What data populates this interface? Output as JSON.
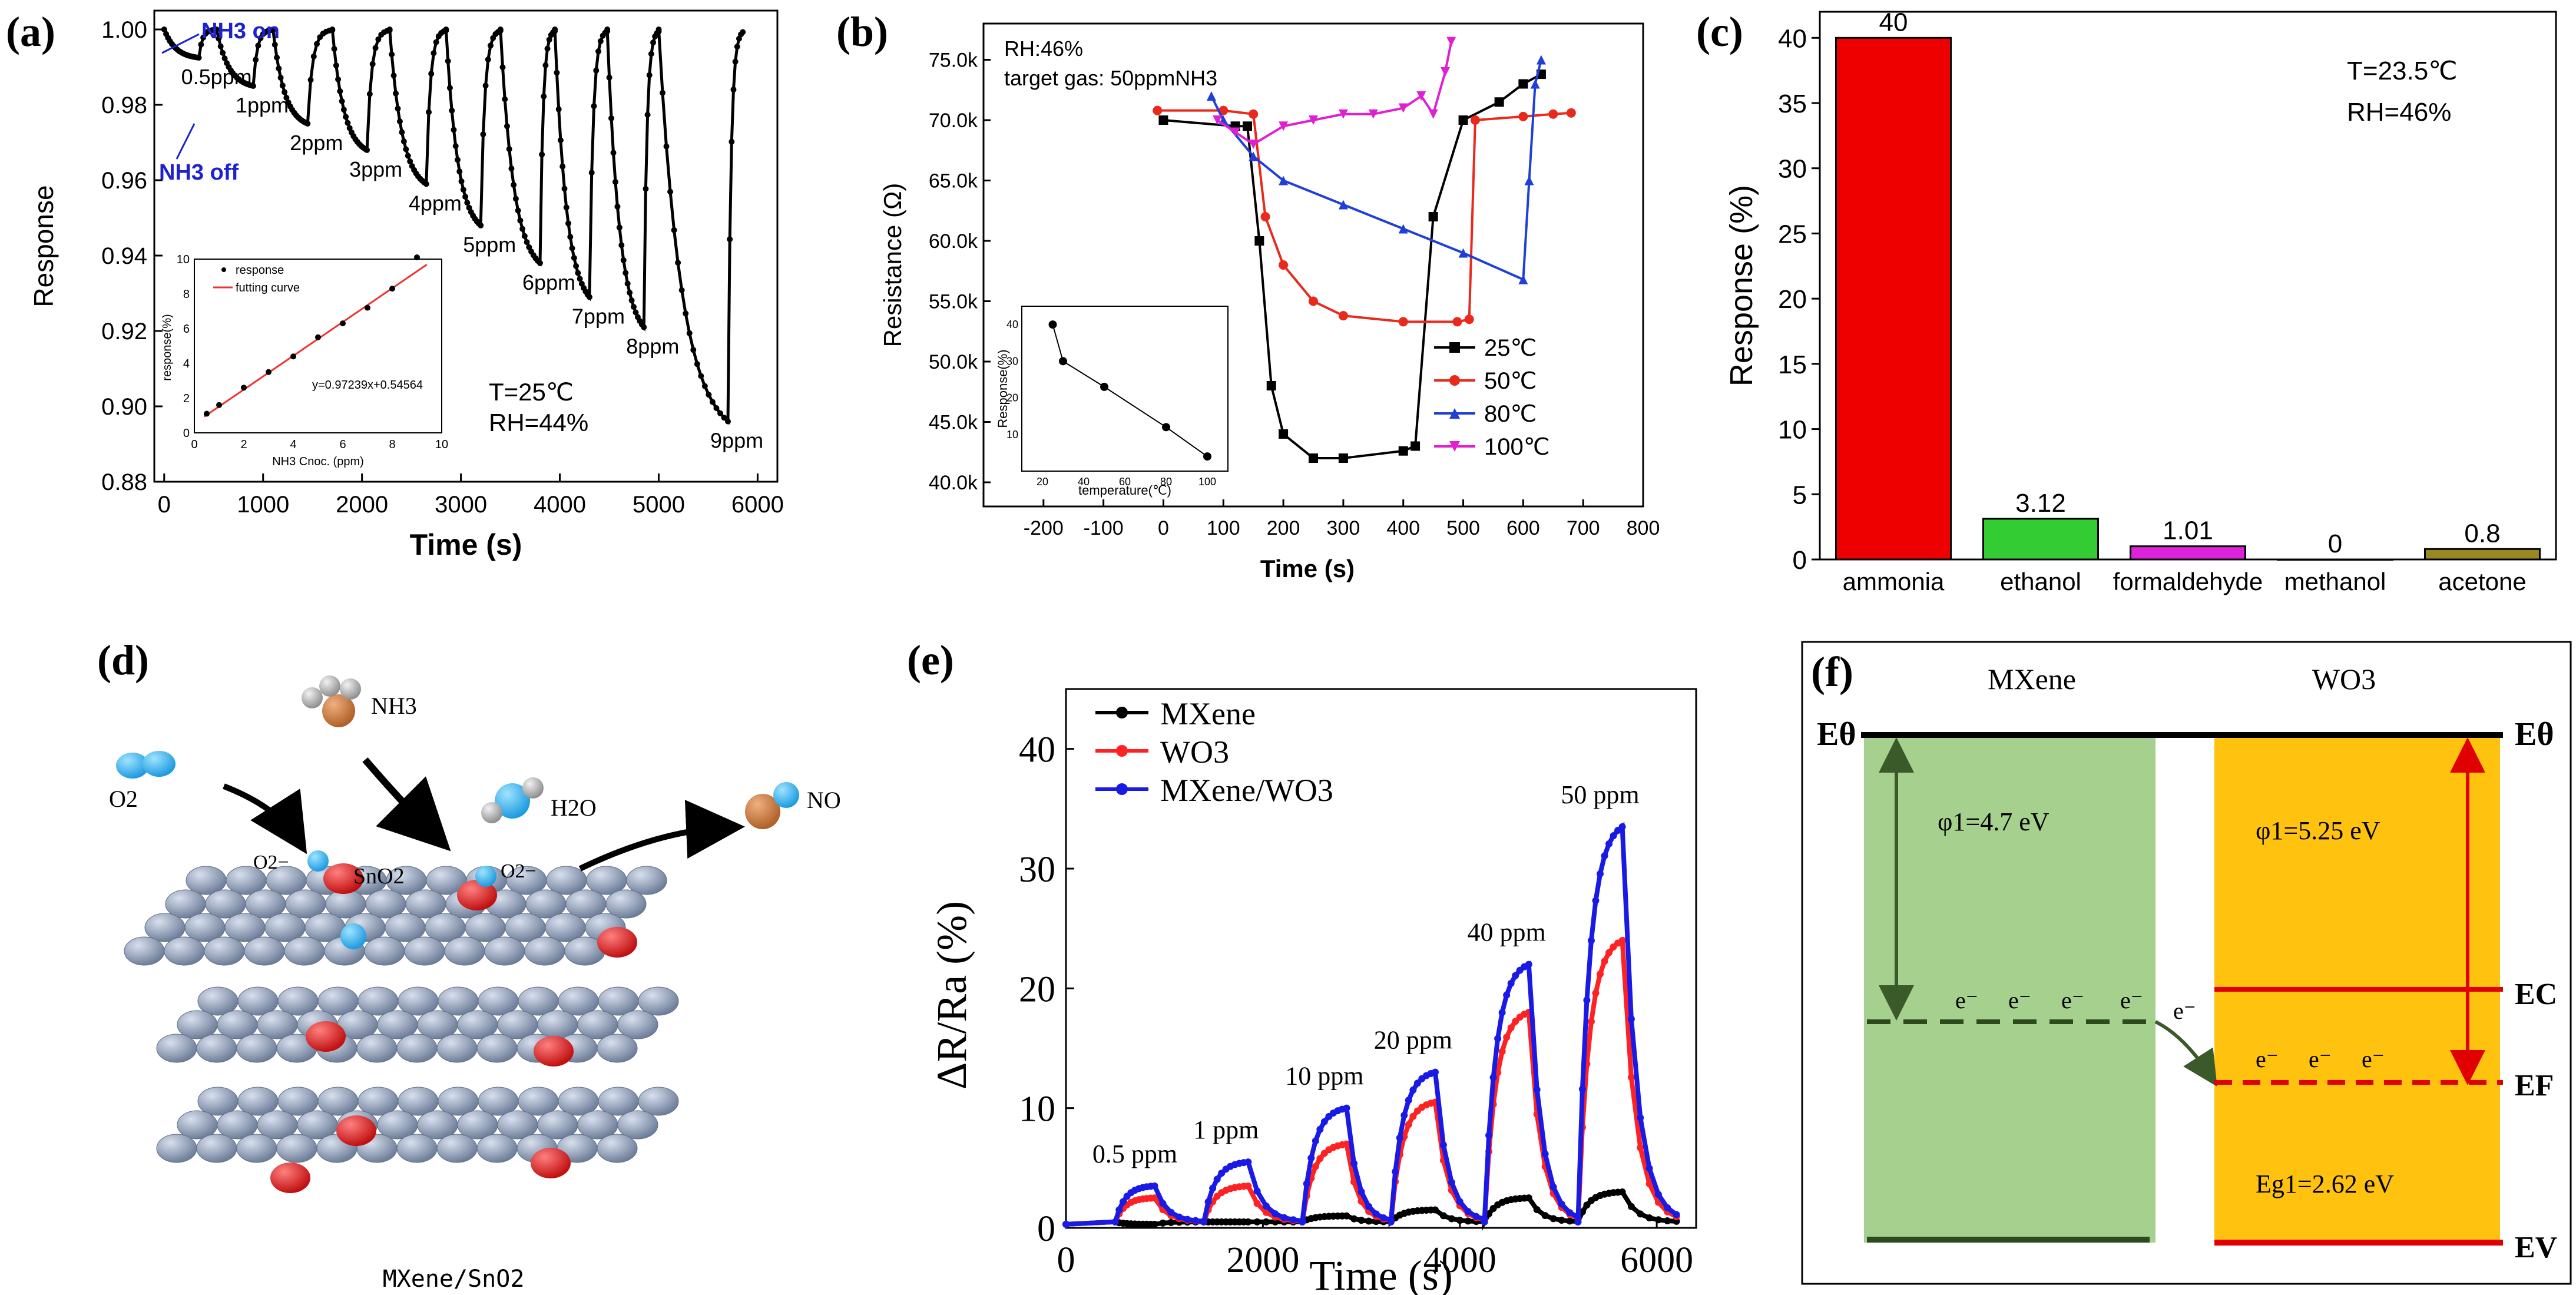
{
  "figure": {
    "panels": {
      "a": {
        "letter": "(a)",
        "ylabel": "Response",
        "xlabel": "Time (s)",
        "annotations": {
          "nh3_on": "NH3 on",
          "nh3_off": "NH3 off",
          "temp": "T=25℃",
          "rh": "RH=44%"
        },
        "conc_labels": [
          "0.5ppm",
          "1ppm",
          "2ppm",
          "3ppm",
          "4ppm",
          "5ppm",
          "6ppm",
          "7ppm",
          "8ppm",
          "9ppm"
        ],
        "inset": {
          "ylabel": "response(%)",
          "xlabel": "NH3 Cnoc. (ppm)",
          "legend": [
            "response",
            "futting curve"
          ],
          "equation": "y=0.97239x+0.54564",
          "x": [
            0.5,
            1,
            2,
            3,
            4,
            5,
            6,
            7,
            8,
            9
          ],
          "y": [
            1.1,
            1.6,
            2.6,
            3.5,
            4.4,
            5.5,
            6.3,
            7.2,
            8.3,
            10.1
          ]
        }
      },
      "b": {
        "letter": "(b)",
        "ylabel": "Resistance (Ω)",
        "xlabel": "Time (s)",
        "annotations": {
          "rh": "RH:46%",
          "target": "target gas: 50ppmNH3"
        },
        "legend": [
          "25℃",
          "50℃",
          "80℃",
          "100℃"
        ],
        "inset": {
          "ylabel": "Response(%)",
          "xlabel": "temperature(℃)",
          "x": [
            25,
            30,
            50,
            80,
            100
          ],
          "y": [
            40,
            30,
            23,
            12,
            4
          ]
        }
      },
      "c": {
        "letter": "(c)",
        "ylabel": "Response (%)",
        "annotations": {
          "temp": "T=23.5℃",
          "rh": "RH=46%"
        }
      },
      "d": {
        "letter": "(d)",
        "labels": {
          "nh3": "NH3",
          "o2": "O2",
          "h2o": "H2O",
          "no": "NO",
          "o2_minus_left": "O2−",
          "sno2": "SnO2",
          "o2_minus_right": "O2−",
          "caption": "MXene/SnO2"
        }
      },
      "e": {
        "letter": "(e)",
        "ylabel": "ΔR/Ra (%)",
        "xlabel": "Time (s)",
        "legend": [
          "MXene",
          "WO3",
          "MXene/WO3"
        ],
        "conc_labels": [
          "0.5 ppm",
          "1 ppm",
          "10 ppm",
          "20 ppm",
          "40 ppm",
          "50 ppm"
        ]
      },
      "f": {
        "letter": "(f)",
        "left_title": "MXene",
        "right_title": "WO3",
        "labels": {
          "e_theta_left": "Eθ",
          "e_theta_right": "Eθ",
          "phi_left": "φ1=4.7 eV",
          "phi_right": "φ1=5.25 eV",
          "ec": "EC",
          "ef": "EF",
          "ev": "EV",
          "egap": "Eg1=2.62 eV",
          "electron": "e⁻"
        }
      }
    }
  },
  "chart_data": [
    {
      "id": "a",
      "type": "line",
      "title": "",
      "xlabel": "Time (s)",
      "ylabel": "Response",
      "xlim": [
        -100,
        6200
      ],
      "ylim": [
        0.88,
        1.005
      ],
      "xticks": [
        0,
        1000,
        2000,
        3000,
        4000,
        5000,
        6000
      ],
      "yticks": [
        0.88,
        0.9,
        0.92,
        0.94,
        0.96,
        0.98,
        1.0
      ],
      "series": [
        {
          "name": "Response",
          "on_times": [
            0,
            530,
            1100,
            1700,
            2280,
            2850,
            3400,
            3950,
            4480,
            5000
          ],
          "off_times": [
            350,
            900,
            1450,
            2050,
            2650,
            3200,
            3800,
            4300,
            4850,
            5700
          ],
          "minima": [
            0.9925,
            0.985,
            0.975,
            0.968,
            0.959,
            0.948,
            0.938,
            0.929,
            0.921,
            0.896
          ]
        }
      ]
    },
    {
      "id": "b",
      "type": "line",
      "title": "",
      "xlabel": "Time (s)",
      "ylabel": "Resistance (Ω)",
      "xlim": [
        -300,
        800
      ],
      "ylim": [
        38000,
        78000
      ],
      "xticks": [
        -200,
        -100,
        0,
        100,
        200,
        300,
        400,
        500,
        600,
        700,
        800
      ],
      "ytick_labels": [
        "40.0k",
        "45.0k",
        "50.0k",
        "55.0k",
        "60.0k",
        "65.0k",
        "70.0k",
        "75.0k"
      ],
      "yticks": [
        40000,
        45000,
        50000,
        55000,
        60000,
        65000,
        70000,
        75000
      ],
      "series": [
        {
          "name": "25℃",
          "color": "#000000",
          "x": [
            0,
            120,
            140,
            160,
            180,
            200,
            250,
            300,
            400,
            420,
            450,
            500,
            560,
            600,
            630
          ],
          "y": [
            70000,
            69500,
            69500,
            60000,
            48000,
            44000,
            42000,
            42000,
            42600,
            43000,
            62000,
            70000,
            71500,
            73000,
            73800
          ]
        },
        {
          "name": "50℃",
          "color": "#e8291c",
          "x": [
            -10,
            100,
            150,
            170,
            200,
            250,
            300,
            400,
            490,
            510,
            520,
            600,
            650,
            680
          ],
          "y": [
            70800,
            70800,
            70500,
            62000,
            58000,
            55000,
            53800,
            53300,
            53300,
            53500,
            70000,
            70300,
            70500,
            70600
          ]
        },
        {
          "name": "80℃",
          "color": "#1f3fd6",
          "x": [
            80,
            100,
            150,
            200,
            300,
            400,
            500,
            600,
            610,
            620,
            630
          ],
          "y": [
            72000,
            70000,
            67000,
            65000,
            63000,
            61000,
            59000,
            56800,
            65000,
            73000,
            75000
          ]
        },
        {
          "name": "100℃",
          "color": "#e020d0",
          "x": [
            90,
            120,
            150,
            200,
            250,
            300,
            350,
            400,
            430,
            450,
            470,
            480
          ],
          "y": [
            70000,
            69000,
            68000,
            69500,
            70000,
            70500,
            70500,
            71000,
            72000,
            70500,
            74000,
            76500
          ]
        }
      ]
    },
    {
      "id": "c",
      "type": "bar",
      "title": "",
      "xlabel": "",
      "ylabel": "Response (%)",
      "categories": [
        "ammonia",
        "ethanol",
        "formaldehyde",
        "methanol",
        "acetone"
      ],
      "values": [
        40,
        3.12,
        1.01,
        0,
        0.8
      ],
      "value_labels": [
        "40",
        "3.12",
        "1.01",
        "0",
        "0.8"
      ],
      "colors": [
        "#ee0000",
        "#33cc33",
        "#dd22dd",
        "#2222dd",
        "#998822"
      ],
      "ylim": [
        0,
        42
      ],
      "yticks": [
        0,
        5,
        10,
        15,
        20,
        25,
        30,
        35,
        40
      ]
    },
    {
      "id": "e",
      "type": "line",
      "title": "",
      "xlabel": "Time (s)",
      "ylabel": "ΔR/Ra (%)",
      "xlim": [
        0,
        6400
      ],
      "ylim": [
        0,
        45
      ],
      "xticks": [
        0,
        2000,
        4000,
        6000
      ],
      "yticks": [
        0,
        10,
        20,
        30,
        40
      ],
      "pulse_starts": [
        500,
        1400,
        2400,
        3300,
        4250,
        5200
      ],
      "pulse_ends": [
        900,
        1850,
        2850,
        3750,
        4700,
        5650
      ],
      "series": [
        {
          "name": "MXene",
          "color": "#000000",
          "peaks": [
            0.3,
            0.5,
            1.0,
            1.5,
            2.5,
            3.0
          ]
        },
        {
          "name": "WO3",
          "color": "#ff2222",
          "peaks": [
            2.5,
            3.5,
            7.0,
            10.5,
            18.0,
            24.0
          ]
        },
        {
          "name": "MXene/WO3",
          "color": "#1a1ae6",
          "peaks": [
            3.5,
            5.5,
            10.0,
            13.0,
            22.0,
            33.5
          ]
        }
      ]
    }
  ]
}
